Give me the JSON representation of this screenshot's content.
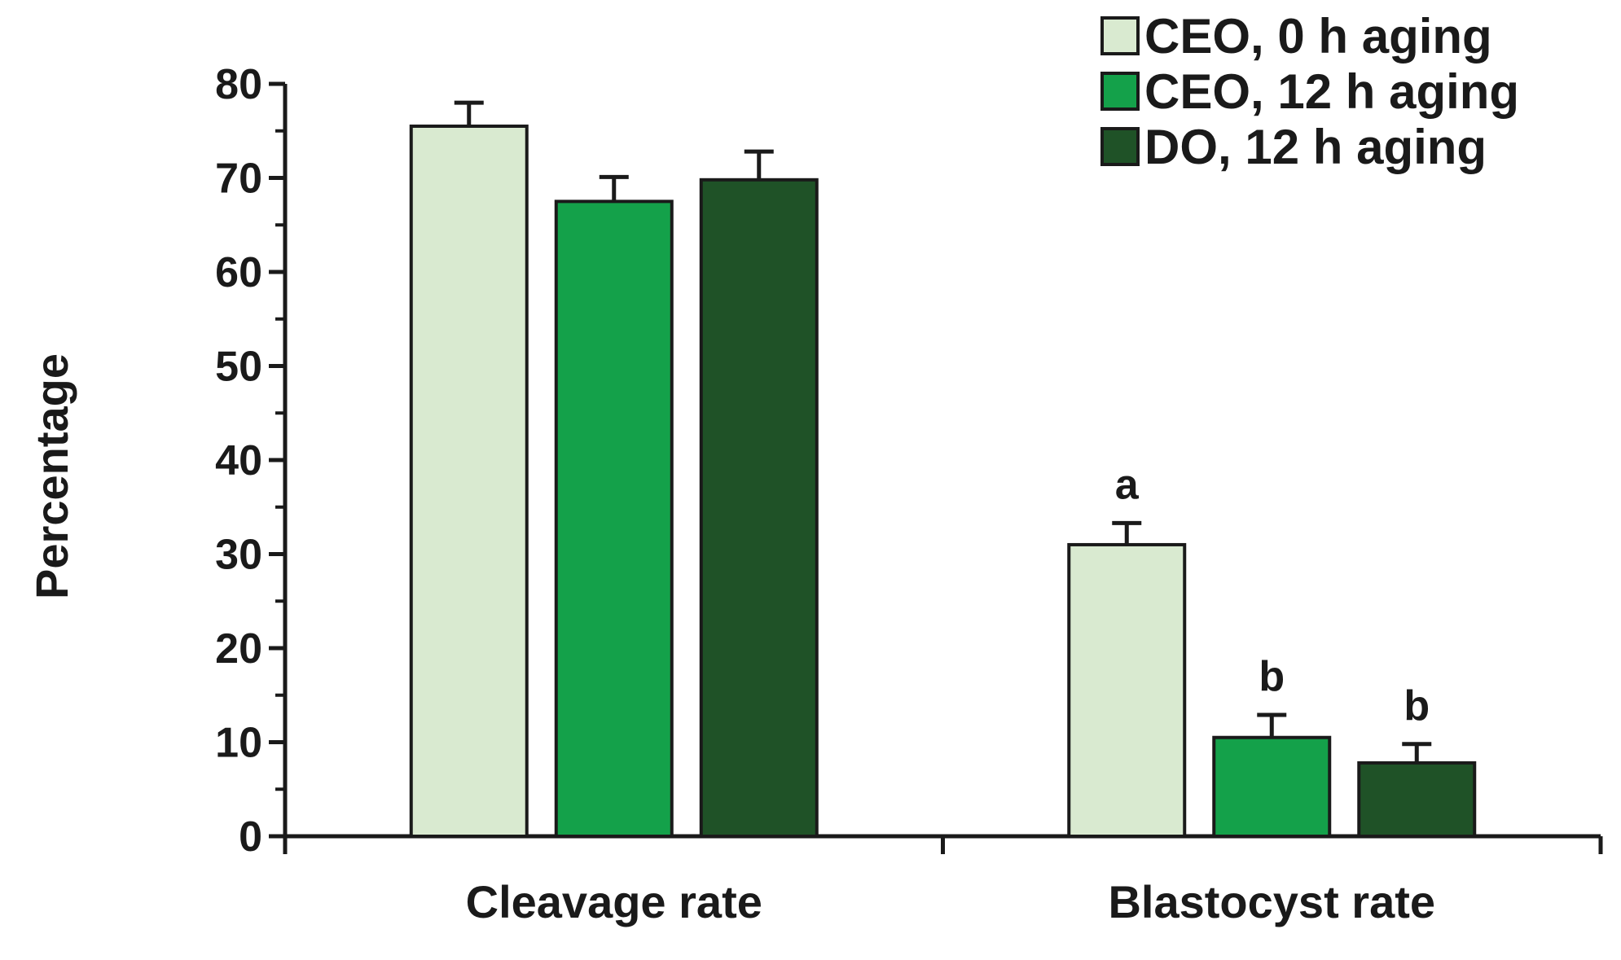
{
  "chart_data": {
    "type": "bar",
    "title": "",
    "xlabel": "",
    "ylabel": "Percentage",
    "ylim": [
      0,
      80
    ],
    "yticks": [
      0,
      10,
      20,
      30,
      40,
      50,
      60,
      70,
      80
    ],
    "categories": [
      "Cleavage rate",
      "Blastocyst rate"
    ],
    "series": [
      {
        "name": "CEO, 0 h aging",
        "color": "#d9ead0",
        "values": [
          75.5,
          31.0
        ],
        "errors": [
          2.5,
          2.3
        ],
        "annotations": [
          "",
          "a"
        ]
      },
      {
        "name": "CEO, 12 h aging",
        "color": "#14a14a",
        "values": [
          67.5,
          10.5
        ],
        "errors": [
          2.6,
          2.4
        ],
        "annotations": [
          "",
          "b"
        ]
      },
      {
        "name": "DO, 12 h aging",
        "color": "#1f5227",
        "values": [
          69.8,
          7.8
        ],
        "errors": [
          3.0,
          2.0
        ],
        "annotations": [
          "",
          "b"
        ]
      }
    ],
    "legend_position": "top-right",
    "grid": false
  }
}
